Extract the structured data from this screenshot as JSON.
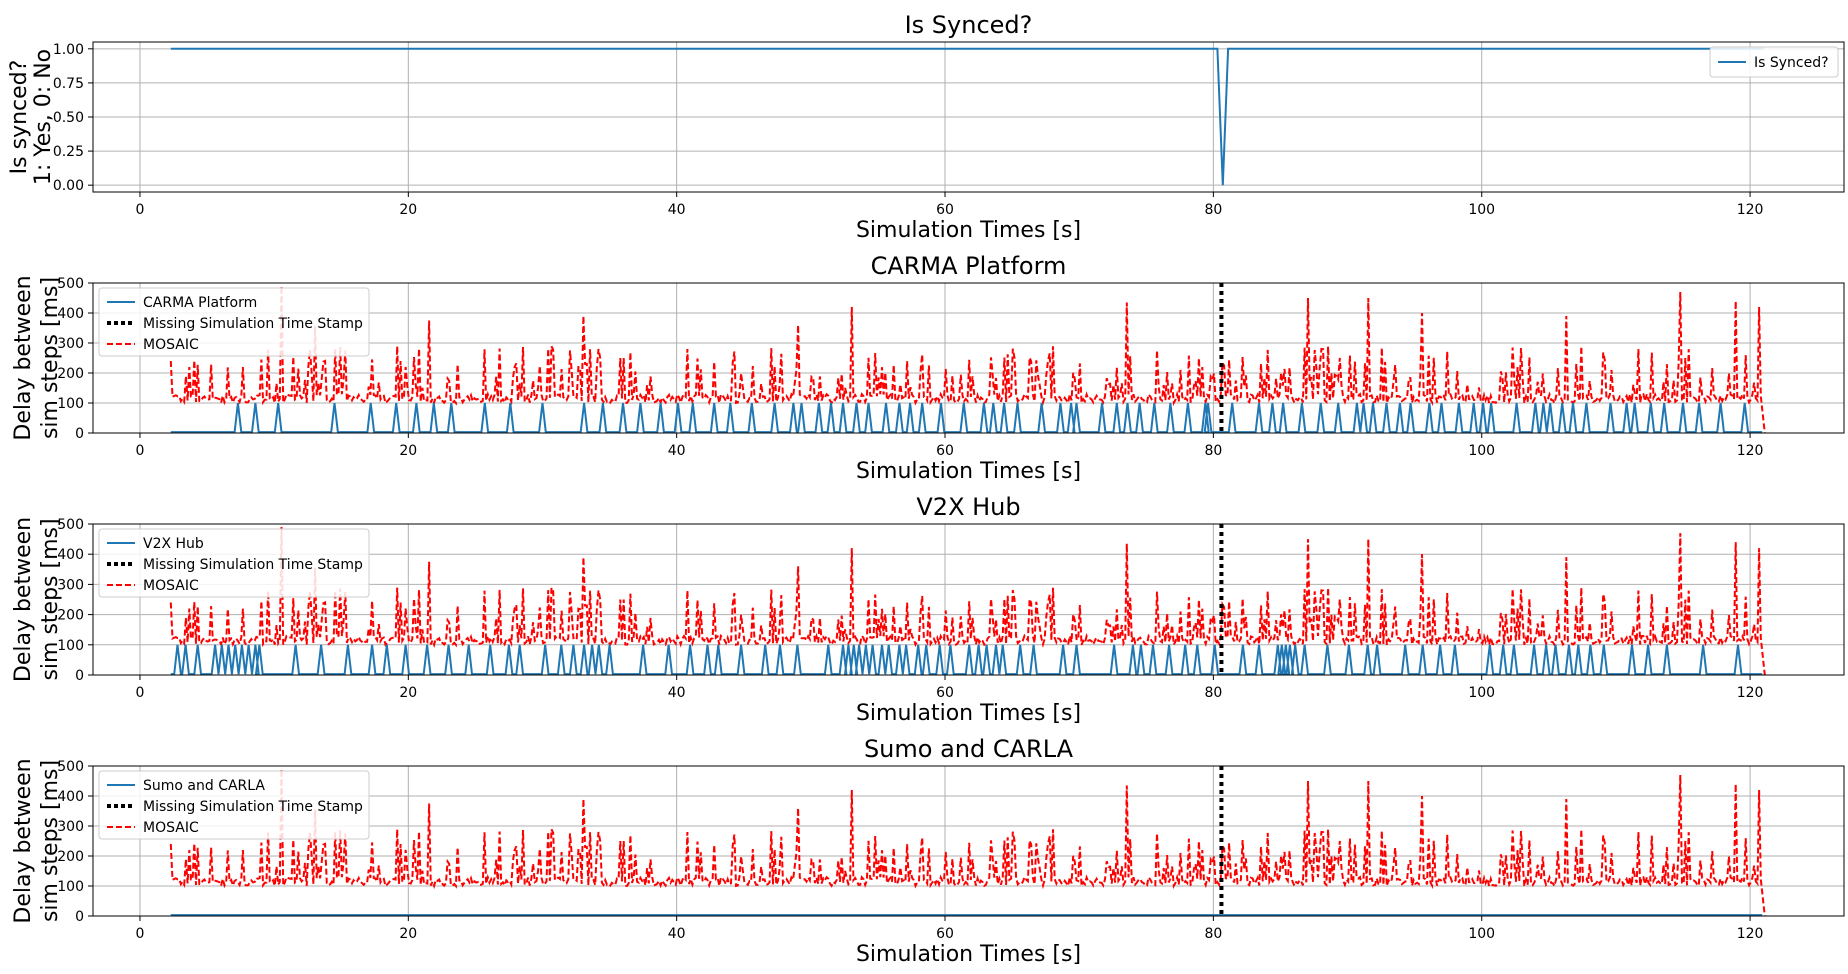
{
  "figure": {
    "colors": {
      "sim_line": "#1f77b4",
      "mosaic_line": "#ff0000",
      "missing_line": "#000000",
      "grid": "#b0b0b0"
    }
  },
  "chart_data": [
    {
      "type": "line",
      "title": "Is Synced?",
      "xlabel": "Simulation Times [s]",
      "ylabel_lines": [
        "Is synced?",
        "1: Yes, 0: No"
      ],
      "xlim": [
        -3.5,
        127
      ],
      "ylim": [
        -0.05,
        1.05
      ],
      "xticks": [
        0,
        20,
        40,
        60,
        80,
        100,
        120
      ],
      "xtick_labels": [
        "0",
        "20",
        "40",
        "60",
        "80",
        "100",
        "120"
      ],
      "yticks": [
        0,
        0.25,
        0.5,
        0.75,
        1.0
      ],
      "ytick_labels": [
        "0.00",
        "0.25",
        "0.50",
        "0.75",
        "1.00"
      ],
      "grid": true,
      "legend": {
        "placement": "upper-right",
        "entries": [
          "Is Synced?"
        ]
      },
      "series": [
        {
          "name": "Is Synced?",
          "style": "solid",
          "color": "#1f77b4",
          "x": [
            2.3,
            80.3,
            80.7,
            81.1,
            121.0
          ],
          "y": [
            1,
            1,
            0,
            1,
            1
          ]
        }
      ]
    },
    {
      "type": "line",
      "title": "CARMA Platform",
      "xlabel": "Simulation Times [s]",
      "ylabel_lines": [
        "Delay between",
        "sim steps [ms]"
      ],
      "xlim": [
        -3.5,
        127
      ],
      "ylim": [
        0,
        500
      ],
      "xticks": [
        0,
        20,
        40,
        60,
        80,
        100,
        120
      ],
      "xtick_labels": [
        "0",
        "20",
        "40",
        "60",
        "80",
        "100",
        "120"
      ],
      "yticks": [
        0,
        100,
        200,
        300,
        400,
        500
      ],
      "ytick_labels": [
        "0",
        "100",
        "200",
        "300",
        "400",
        "500"
      ],
      "grid": true,
      "legend": {
        "placement": "upper-left",
        "entries": [
          "CARMA Platform",
          "Missing Simulation Time Stamp",
          "MOSAIC"
        ]
      },
      "missing_timestamp_x": 80.6,
      "spike_height": 100,
      "spikes_x": [
        7.3,
        8.6,
        10.3,
        14.5,
        17.2,
        19.1,
        20.6,
        21.9,
        23.2,
        25.7,
        27.6,
        30.0,
        33.1,
        34.5,
        36.0,
        37.3,
        38.8,
        40.1,
        41.2,
        42.8,
        44.0,
        45.6,
        47.3,
        48.7,
        49.3,
        50.6,
        51.5,
        52.4,
        53.4,
        54.3,
        55.6,
        56.6,
        57.4,
        58.3,
        59.7,
        61.4,
        62.9,
        63.6,
        64.4,
        65.4,
        67.2,
        68.6,
        69.4,
        69.8,
        71.7,
        72.8,
        73.6,
        74.5,
        75.6,
        76.8,
        78.1,
        79.4,
        79.6,
        81.4,
        83.4,
        84.4,
        85.2,
        86.6,
        88.0,
        89.3,
        90.7,
        91.2,
        91.9,
        92.9,
        93.9,
        94.7,
        96.1,
        97.0,
        98.3,
        99.4,
        100.1,
        100.7,
        102.6,
        104.0,
        104.6,
        105.1,
        106.0,
        106.8,
        107.8,
        109.6,
        110.8,
        111.4,
        112.6,
        113.6,
        115.0,
        116.2,
        117.8,
        119.6
      ],
      "mosaic_baseline": [
        100,
        130
      ],
      "mosaic_peaks": [
        {
          "x": 2.3,
          "y": 240
        },
        {
          "x": 10.5,
          "y": 490
        },
        {
          "x": 13.0,
          "y": 355
        },
        {
          "x": 21.6,
          "y": 375
        },
        {
          "x": 33.0,
          "y": 390
        },
        {
          "x": 36.0,
          "y": 250
        },
        {
          "x": 49.1,
          "y": 360
        },
        {
          "x": 53.0,
          "y": 420
        },
        {
          "x": 73.5,
          "y": 435
        },
        {
          "x": 87.0,
          "y": 450
        },
        {
          "x": 91.5,
          "y": 450
        },
        {
          "x": 95.5,
          "y": 400
        },
        {
          "x": 106.3,
          "y": 390
        },
        {
          "x": 114.8,
          "y": 470
        },
        {
          "x": 118.9,
          "y": 440
        },
        {
          "x": 120.7,
          "y": 420
        }
      ],
      "series": [
        {
          "name": "CARMA Platform",
          "style": "solid",
          "color": "#1f77b4"
        },
        {
          "name": "Missing Simulation Time Stamp",
          "style": "dotted",
          "color": "#000000"
        },
        {
          "name": "MOSAIC",
          "style": "dashed",
          "color": "#ff0000"
        }
      ]
    },
    {
      "type": "line",
      "title": "V2X Hub",
      "xlabel": "Simulation Times [s]",
      "ylabel_lines": [
        "Delay between",
        "sim steps [ms]"
      ],
      "xlim": [
        -3.5,
        127
      ],
      "ylim": [
        0,
        500
      ],
      "xticks": [
        0,
        20,
        40,
        60,
        80,
        100,
        120
      ],
      "xtick_labels": [
        "0",
        "20",
        "40",
        "60",
        "80",
        "100",
        "120"
      ],
      "yticks": [
        0,
        100,
        200,
        300,
        400,
        500
      ],
      "ytick_labels": [
        "0",
        "100",
        "200",
        "300",
        "400",
        "500"
      ],
      "grid": true,
      "legend": {
        "placement": "upper-left",
        "entries": [
          "V2X Hub",
          "Missing Simulation Time Stamp",
          "MOSAIC"
        ]
      },
      "missing_timestamp_x": 80.6,
      "spike_height": 100,
      "spikes_x": [
        2.8,
        3.4,
        4.3,
        5.6,
        6.1,
        6.6,
        7.1,
        7.6,
        8.1,
        8.6,
        8.9,
        11.6,
        13.5,
        15.5,
        17.3,
        18.4,
        19.8,
        21.4,
        23.0,
        24.5,
        26.1,
        27.5,
        28.3,
        30.2,
        31.4,
        32.3,
        33.1,
        33.7,
        34.2,
        35.0,
        37.5,
        39.4,
        41.0,
        42.3,
        43.1,
        44.8,
        46.6,
        47.7,
        49.0,
        51.3,
        52.4,
        52.8,
        53.2,
        53.6,
        54.1,
        54.6,
        55.3,
        55.8,
        56.6,
        57.1,
        58.0,
        58.6,
        59.6,
        60.4,
        61.8,
        62.5,
        63.1,
        63.8,
        64.3,
        65.6,
        66.6,
        68.8,
        69.8,
        72.6,
        74.0,
        74.6,
        75.5,
        76.7,
        77.9,
        78.8,
        80.1,
        82.2,
        83.4,
        84.8,
        85.1,
        85.4,
        85.7,
        86.1,
        86.8,
        88.5,
        90.1,
        91.5,
        92.2,
        94.3,
        95.6,
        96.9,
        98.0,
        100.6,
        101.6,
        102.4,
        103.9,
        104.8,
        105.5,
        106.5,
        107.2,
        108.1,
        109.1,
        111.2,
        112.4,
        113.8,
        116.5,
        119.1
      ],
      "mosaic_baseline": [
        100,
        130
      ],
      "mosaic_peaks": [
        {
          "x": 2.3,
          "y": 240
        },
        {
          "x": 10.5,
          "y": 490
        },
        {
          "x": 13.0,
          "y": 355
        },
        {
          "x": 21.6,
          "y": 375
        },
        {
          "x": 33.0,
          "y": 390
        },
        {
          "x": 36.0,
          "y": 250
        },
        {
          "x": 49.1,
          "y": 360
        },
        {
          "x": 53.0,
          "y": 420
        },
        {
          "x": 73.5,
          "y": 435
        },
        {
          "x": 87.0,
          "y": 450
        },
        {
          "x": 91.5,
          "y": 450
        },
        {
          "x": 95.5,
          "y": 400
        },
        {
          "x": 106.3,
          "y": 390
        },
        {
          "x": 114.8,
          "y": 470
        },
        {
          "x": 118.9,
          "y": 440
        },
        {
          "x": 120.7,
          "y": 420
        }
      ],
      "series": [
        {
          "name": "V2X Hub",
          "style": "solid",
          "color": "#1f77b4"
        },
        {
          "name": "Missing Simulation Time Stamp",
          "style": "dotted",
          "color": "#000000"
        },
        {
          "name": "MOSAIC",
          "style": "dashed",
          "color": "#ff0000"
        }
      ]
    },
    {
      "type": "line",
      "title": "Sumo and CARLA",
      "xlabel": "Simulation Times [s]",
      "ylabel_lines": [
        "Delay between",
        "sim steps [ms]"
      ],
      "xlim": [
        -3.5,
        127
      ],
      "ylim": [
        0,
        500
      ],
      "xticks": [
        0,
        20,
        40,
        60,
        80,
        100,
        120
      ],
      "xtick_labels": [
        "0",
        "20",
        "40",
        "60",
        "80",
        "100",
        "120"
      ],
      "yticks": [
        0,
        100,
        200,
        300,
        400,
        500
      ],
      "ytick_labels": [
        "0",
        "100",
        "200",
        "300",
        "400",
        "500"
      ],
      "grid": true,
      "legend": {
        "placement": "upper-left",
        "entries": [
          "Sumo and CARLA",
          "Missing Simulation Time Stamp",
          "MOSAIC"
        ]
      },
      "missing_timestamp_x": 80.6,
      "spike_height": 0,
      "spikes_x": [],
      "mosaic_baseline": [
        100,
        130
      ],
      "mosaic_peaks": [
        {
          "x": 2.3,
          "y": 240
        },
        {
          "x": 10.5,
          "y": 490
        },
        {
          "x": 13.0,
          "y": 355
        },
        {
          "x": 21.6,
          "y": 375
        },
        {
          "x": 33.0,
          "y": 390
        },
        {
          "x": 36.0,
          "y": 250
        },
        {
          "x": 49.1,
          "y": 360
        },
        {
          "x": 53.0,
          "y": 420
        },
        {
          "x": 73.5,
          "y": 435
        },
        {
          "x": 87.0,
          "y": 450
        },
        {
          "x": 91.5,
          "y": 450
        },
        {
          "x": 95.5,
          "y": 400
        },
        {
          "x": 106.3,
          "y": 390
        },
        {
          "x": 114.8,
          "y": 470
        },
        {
          "x": 118.9,
          "y": 440
        },
        {
          "x": 120.7,
          "y": 420
        }
      ],
      "series": [
        {
          "name": "Sumo and CARLA",
          "style": "solid",
          "color": "#1f77b4"
        },
        {
          "name": "Missing Simulation Time Stamp",
          "style": "dotted",
          "color": "#000000"
        },
        {
          "name": "MOSAIC",
          "style": "dashed",
          "color": "#ff0000"
        }
      ]
    }
  ]
}
